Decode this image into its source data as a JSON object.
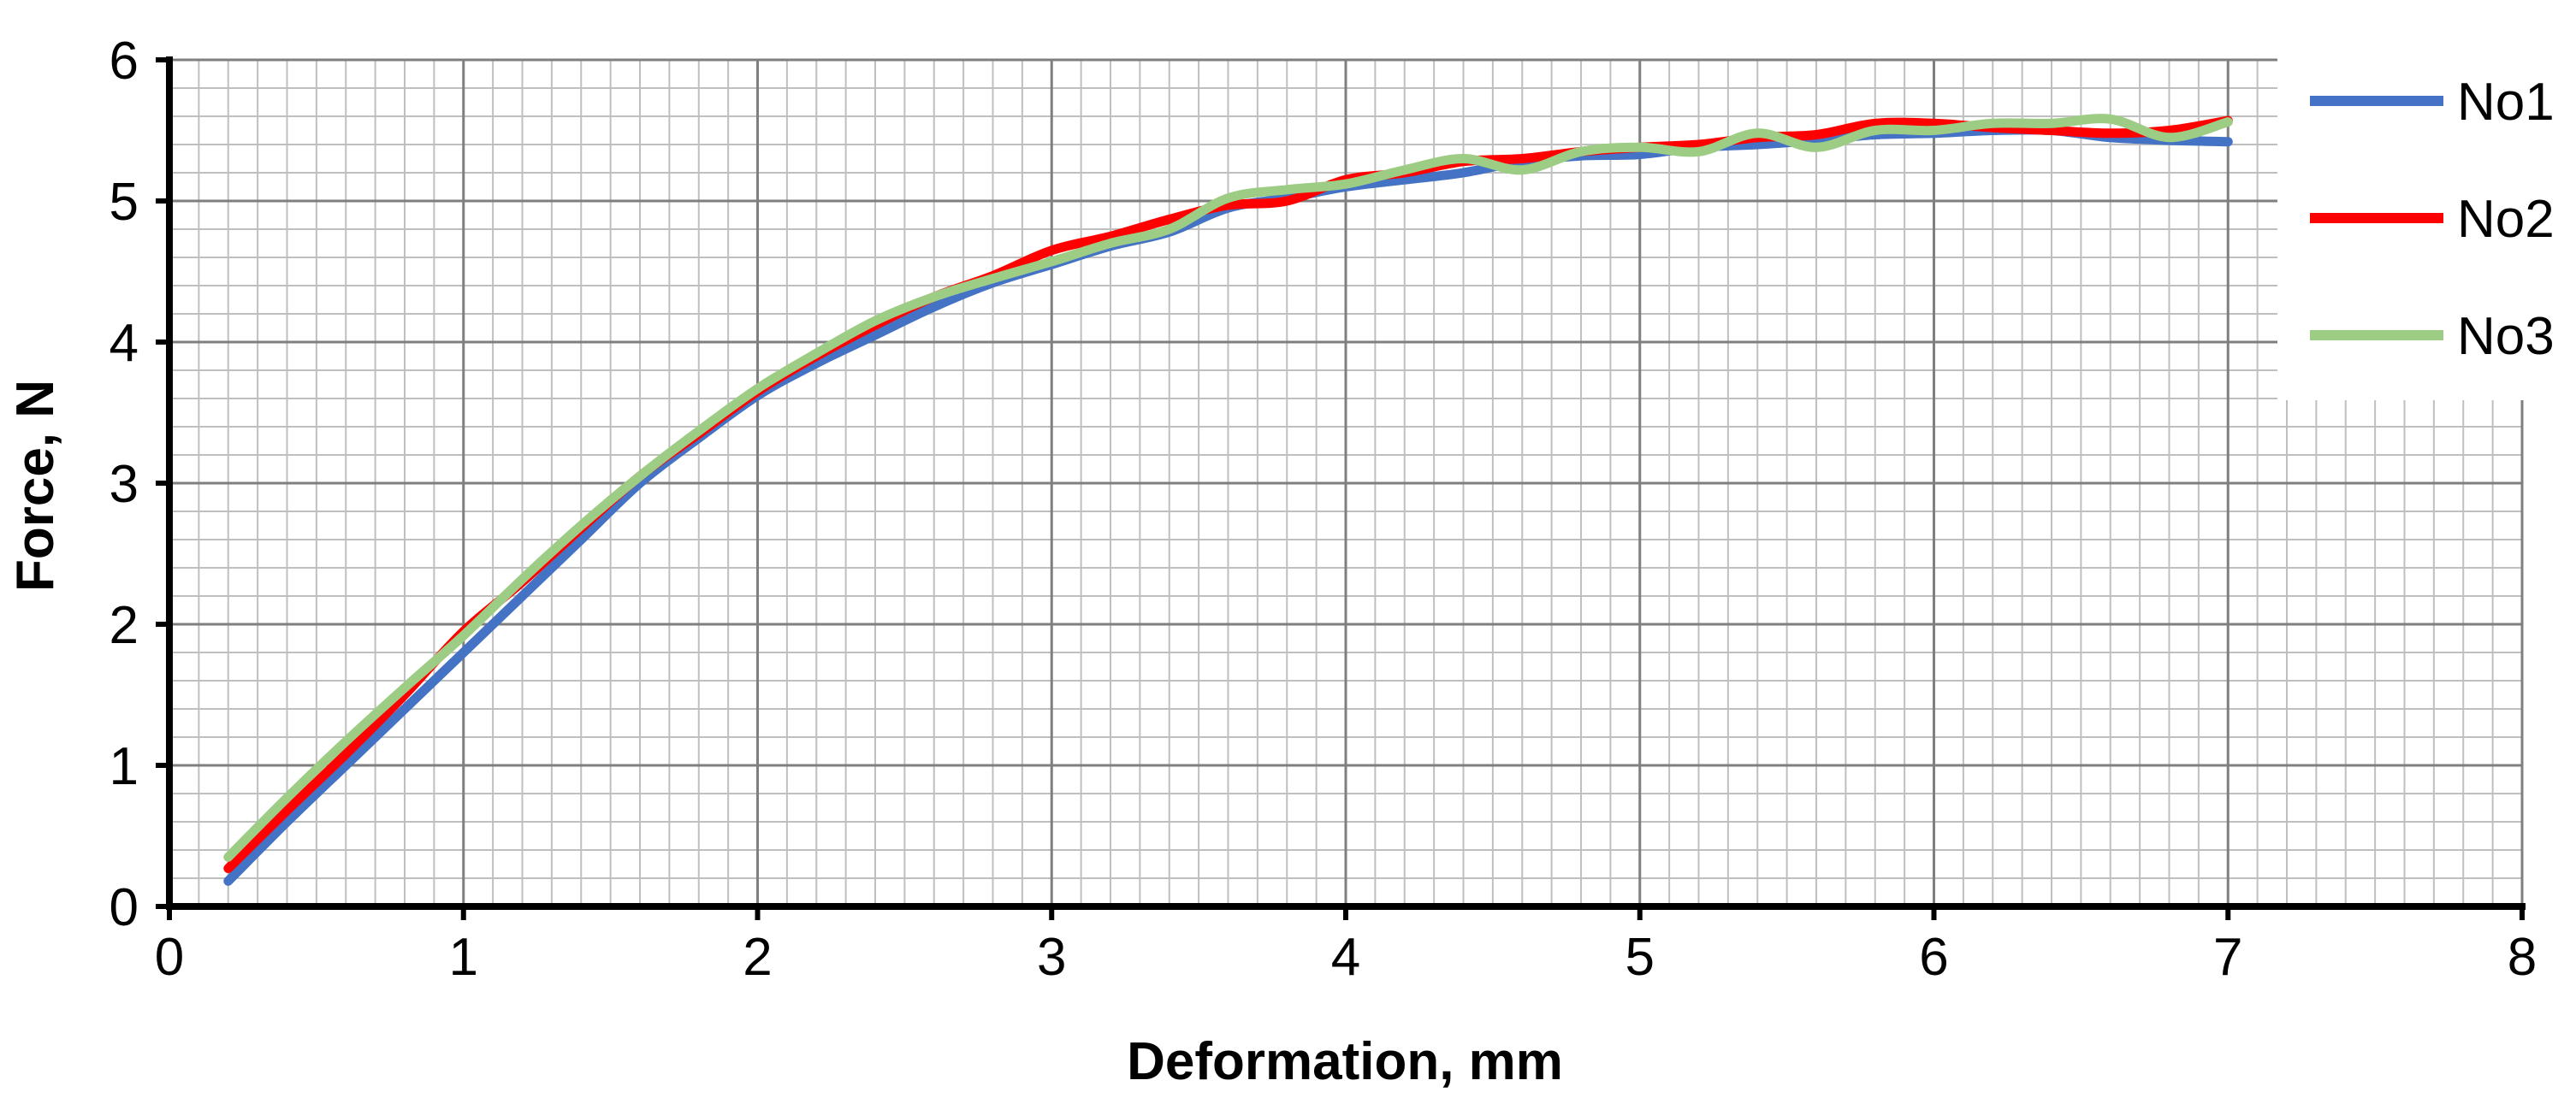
{
  "chart_data": {
    "type": "line",
    "title": "",
    "xlabel": "Deformation, mm",
    "ylabel": "Force, N",
    "xlim": [
      0,
      8
    ],
    "ylim": [
      0,
      6
    ],
    "x_ticks": [
      "0",
      "1",
      "2",
      "3",
      "4",
      "5",
      "6",
      "7",
      "8"
    ],
    "y_ticks": [
      "0",
      "1",
      "2",
      "3",
      "4",
      "5",
      "6"
    ],
    "x_minor_step": 0.1,
    "y_minor_step": 0.2,
    "grid": true,
    "legend_position": "top-right",
    "series": [
      {
        "name": "No1",
        "color": "#4472C4",
        "x": [
          0.2,
          0.4,
          0.6,
          0.8,
          1.0,
          1.2,
          1.4,
          1.6,
          1.8,
          2.0,
          2.2,
          2.4,
          2.6,
          2.8,
          3.0,
          3.2,
          3.4,
          3.6,
          3.8,
          4.0,
          4.2,
          4.4,
          4.6,
          4.8,
          5.0,
          5.2,
          5.4,
          5.6,
          5.8,
          6.0,
          6.2,
          6.4,
          6.6,
          6.8,
          7.0
        ],
        "y": [
          0.18,
          0.6,
          1.0,
          1.4,
          1.8,
          2.2,
          2.6,
          3.0,
          3.32,
          3.62,
          3.85,
          4.05,
          4.25,
          4.42,
          4.55,
          4.68,
          4.78,
          4.95,
          5.02,
          5.1,
          5.15,
          5.2,
          5.28,
          5.32,
          5.33,
          5.38,
          5.4,
          5.43,
          5.47,
          5.48,
          5.5,
          5.5,
          5.45,
          5.43,
          5.42
        ]
      },
      {
        "name": "No2",
        "color": "#FF0000",
        "x": [
          0.2,
          0.4,
          0.6,
          0.8,
          1.0,
          1.2,
          1.4,
          1.6,
          1.8,
          2.0,
          2.2,
          2.4,
          2.6,
          2.8,
          3.0,
          3.2,
          3.4,
          3.6,
          3.8,
          4.0,
          4.2,
          4.4,
          4.6,
          4.8,
          5.0,
          5.2,
          5.4,
          5.6,
          5.8,
          6.0,
          6.2,
          6.4,
          6.6,
          6.8,
          7.0
        ],
        "y": [
          0.27,
          0.68,
          1.08,
          1.5,
          1.95,
          2.3,
          2.68,
          3.05,
          3.35,
          3.65,
          3.9,
          4.12,
          4.32,
          4.47,
          4.65,
          4.75,
          4.87,
          4.97,
          5.0,
          5.15,
          5.2,
          5.28,
          5.3,
          5.35,
          5.38,
          5.4,
          5.45,
          5.47,
          5.55,
          5.55,
          5.52,
          5.5,
          5.48,
          5.5,
          5.57
        ]
      },
      {
        "name": "No3",
        "color": "#9DCC85",
        "x": [
          0.2,
          0.4,
          0.6,
          0.8,
          1.0,
          1.2,
          1.4,
          1.6,
          1.8,
          2.0,
          2.2,
          2.4,
          2.6,
          2.8,
          3.0,
          3.2,
          3.4,
          3.6,
          3.8,
          4.0,
          4.2,
          4.4,
          4.6,
          4.8,
          5.0,
          5.2,
          5.4,
          5.6,
          5.8,
          6.0,
          6.2,
          6.4,
          6.6,
          6.8,
          7.0
        ],
        "y": [
          0.35,
          0.77,
          1.17,
          1.55,
          1.92,
          2.32,
          2.7,
          3.05,
          3.37,
          3.67,
          3.92,
          4.15,
          4.32,
          4.45,
          4.57,
          4.7,
          4.8,
          5.02,
          5.08,
          5.12,
          5.22,
          5.3,
          5.22,
          5.35,
          5.38,
          5.35,
          5.48,
          5.38,
          5.5,
          5.5,
          5.55,
          5.55,
          5.58,
          5.45,
          5.56
        ]
      }
    ]
  }
}
